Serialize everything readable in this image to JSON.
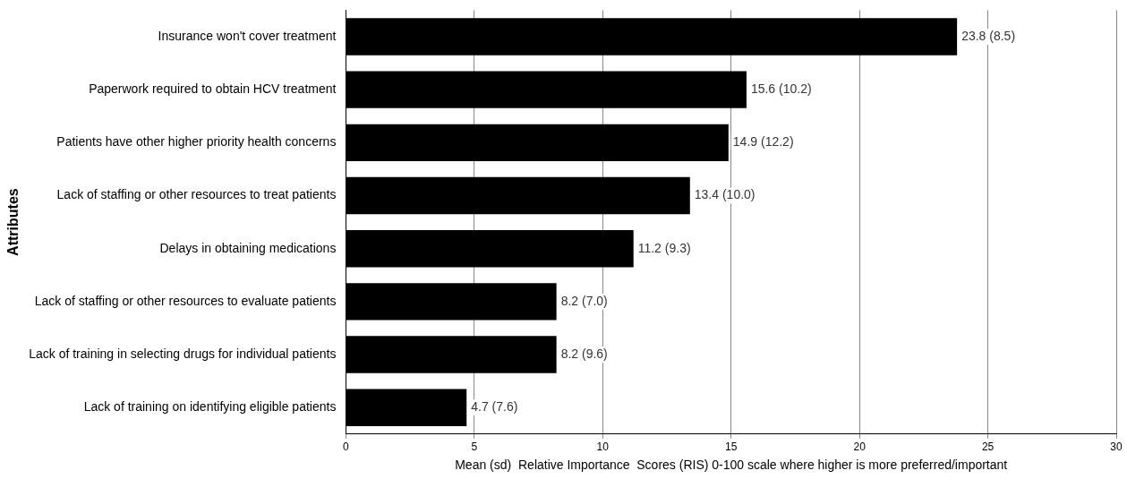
{
  "chart_data": {
    "type": "bar",
    "orientation": "horizontal",
    "xlabel": "Mean (sd)  Relative Importance  Scores (RIS) 0-100 scale where higher is more preferred/important",
    "ylabel": "Attributes",
    "categories": [
      "Insurance won't cover treatment",
      "Paperwork required to obtain HCV treatment",
      "Patients have other higher priority health concerns",
      "Lack of staffing or other resources to treat patients",
      "Delays in obtaining medications",
      "Lack of staffing or other resources to evaluate patients",
      "Lack of training in selecting drugs for individual patients",
      "Lack of training on identifying eligible patients"
    ],
    "values": [
      23.8,
      15.6,
      14.9,
      13.4,
      11.2,
      8.2,
      8.2,
      4.7
    ],
    "value_labels": [
      "23.8 (8.5)",
      "15.6 (10.2)",
      "14.9 (12.2)",
      "13.4 (10.0)",
      "11.2 (9.3)",
      "8.2 (7.0)",
      "8.2 (9.6)",
      "4.7 (7.6)"
    ],
    "color": "#000000",
    "xlim": [
      0,
      30
    ],
    "xticks": [
      0,
      5,
      10,
      15,
      20,
      25,
      30
    ],
    "grid": "x",
    "legend": false
  }
}
